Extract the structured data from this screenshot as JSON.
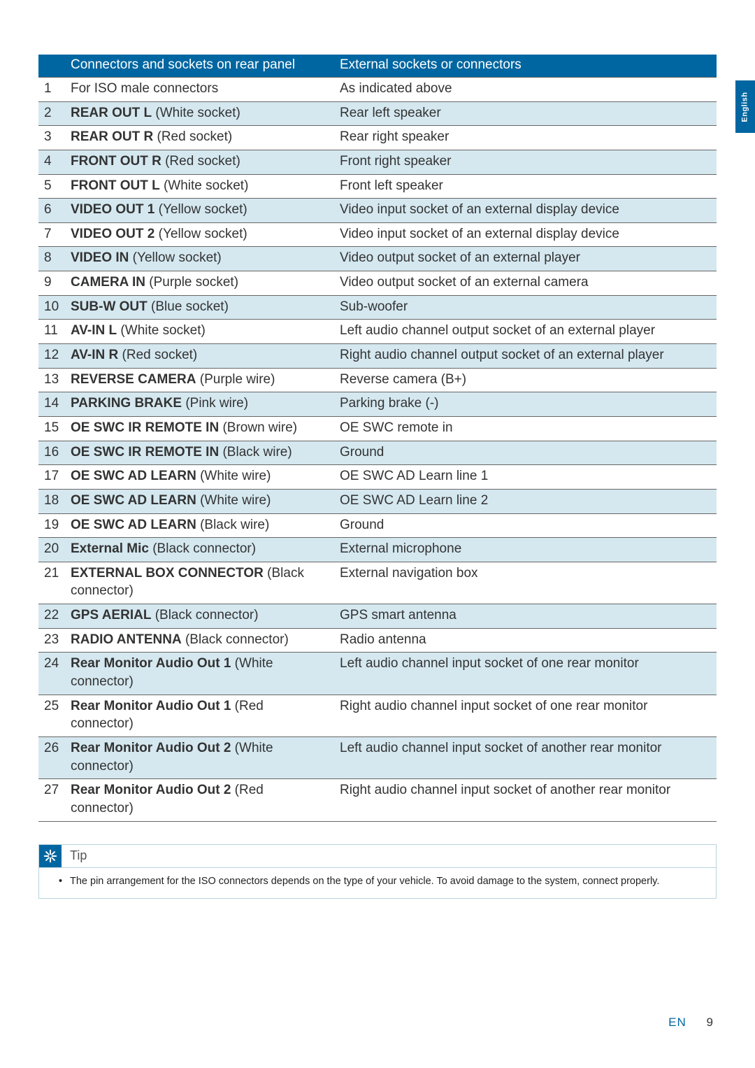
{
  "language_tab": "English",
  "table": {
    "headers": {
      "num": "",
      "connectors": "Connectors and sockets on rear panel",
      "external": "External sockets or connectors"
    },
    "rows": [
      {
        "n": "1",
        "bold": "",
        "normal": "For ISO male connectors",
        "ext": "As indicated above",
        "shaded": false
      },
      {
        "n": "2",
        "bold": "REAR OUT L",
        "normal": " (White socket)",
        "ext": "Rear left speaker",
        "shaded": true
      },
      {
        "n": "3",
        "bold": "REAR OUT R",
        "normal": " (Red socket)",
        "ext": "Rear right speaker",
        "shaded": false
      },
      {
        "n": "4",
        "bold": "FRONT OUT R",
        "normal": " (Red socket)",
        "ext": "Front right speaker",
        "shaded": true
      },
      {
        "n": "5",
        "bold": "FRONT OUT L",
        "normal": " (White socket)",
        "ext": "Front left speaker",
        "shaded": false
      },
      {
        "n": "6",
        "bold": "VIDEO OUT 1",
        "normal": " (Yellow socket)",
        "ext": "Video input socket of an external display device",
        "shaded": true
      },
      {
        "n": "7",
        "bold": "VIDEO OUT 2",
        "normal": " (Yellow socket)",
        "ext": "Video input socket of an external display device",
        "shaded": false
      },
      {
        "n": "8",
        "bold": "VIDEO IN",
        "normal": " (Yellow socket)",
        "ext": "Video output socket of an external player",
        "shaded": true
      },
      {
        "n": "9",
        "bold": "CAMERA IN",
        "normal": " (Purple socket)",
        "ext": "Video output socket of an external camera",
        "shaded": false
      },
      {
        "n": "10",
        "bold": "SUB-W OUT",
        "normal": " (Blue socket)",
        "ext": "Sub-woofer",
        "shaded": true
      },
      {
        "n": "11",
        "bold": "AV-IN L",
        "normal": " (White socket)",
        "ext": "Left audio channel output socket of an external player",
        "shaded": false
      },
      {
        "n": "12",
        "bold": "AV-IN R",
        "normal": " (Red socket)",
        "ext": "Right audio channel output socket of an external player",
        "shaded": true
      },
      {
        "n": "13",
        "bold": "REVERSE CAMERA",
        "normal": " (Purple wire)",
        "ext": "Reverse camera (B+)",
        "shaded": false
      },
      {
        "n": "14",
        "bold": "PARKING BRAKE",
        "normal": " (Pink wire)",
        "ext": "Parking brake (-)",
        "shaded": true
      },
      {
        "n": "15",
        "bold": "OE SWC IR REMOTE IN",
        "normal": " (Brown wire)",
        "ext": "OE SWC remote in",
        "shaded": false
      },
      {
        "n": "16",
        "bold": "OE SWC IR REMOTE IN",
        "normal": " (Black wire)",
        "ext": "Ground",
        "shaded": true
      },
      {
        "n": "17",
        "bold": "OE SWC AD LEARN",
        "normal": " (White wire)",
        "ext": "OE SWC AD Learn line 1",
        "shaded": false
      },
      {
        "n": "18",
        "bold": "OE SWC AD LEARN",
        "normal": " (White wire)",
        "ext": "OE SWC AD Learn line 2",
        "shaded": true
      },
      {
        "n": "19",
        "bold": "OE SWC AD LEARN",
        "normal": " (Black wire)",
        "ext": "Ground",
        "shaded": false
      },
      {
        "n": "20",
        "bold": "External Mic",
        "normal": " (Black connector)",
        "ext": "External microphone",
        "shaded": true
      },
      {
        "n": "21",
        "bold": "EXTERNAL BOX CONNECTOR",
        "normal": " (Black connector)",
        "ext": "External navigation box",
        "shaded": false
      },
      {
        "n": "22",
        "bold": "GPS AERIAL",
        "normal": " (Black connector)",
        "ext": "GPS smart antenna",
        "shaded": true
      },
      {
        "n": "23",
        "bold": "RADIO ANTENNA",
        "normal": " (Black connector)",
        "ext": "Radio antenna",
        "shaded": false
      },
      {
        "n": "24",
        "bold": "Rear Monitor Audio Out 1",
        "normal": " (White connector)",
        "ext": "Left audio channel input socket of one rear monitor",
        "shaded": true
      },
      {
        "n": "25",
        "bold": "Rear Monitor Audio Out 1",
        "normal": " (Red connector)",
        "ext": "Right audio channel input socket of one rear monitor",
        "shaded": false
      },
      {
        "n": "26",
        "bold": "Rear Monitor Audio Out 2",
        "normal": " (White connector)",
        "ext": "Left audio channel input socket of another rear monitor",
        "shaded": true
      },
      {
        "n": "27",
        "bold": "Rear Monitor Audio Out 2",
        "normal": " (Red connector)",
        "ext": "Right audio channel input socket of another rear monitor",
        "shaded": false
      }
    ]
  },
  "tip": {
    "label": "Tip",
    "text": "The pin arrangement for the ISO connectors depends on the type of your vehicle. To avoid damage to the system, connect properly."
  },
  "footer": {
    "lang": "EN",
    "page": "9"
  },
  "colors": {
    "header_bg": "#0066a1",
    "shaded_row": "#d5e8f0",
    "border": "#666666",
    "tip_border": "#b8d4de"
  }
}
